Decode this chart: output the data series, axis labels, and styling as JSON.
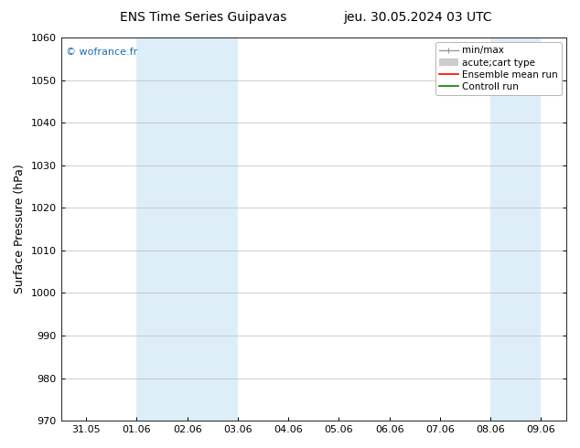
{
  "title_left": "ENS Time Series Guipavas",
  "title_right": "jeu. 30.05.2024 03 UTC",
  "ylabel": "Surface Pressure (hPa)",
  "ylim": [
    970,
    1060
  ],
  "yticks": [
    970,
    980,
    990,
    1000,
    1010,
    1020,
    1030,
    1040,
    1050,
    1060
  ],
  "x_labels": [
    "31.05",
    "01.06",
    "02.06",
    "03.06",
    "04.06",
    "05.06",
    "06.06",
    "07.06",
    "08.06",
    "09.06"
  ],
  "x_positions": [
    0,
    1,
    2,
    3,
    4,
    5,
    6,
    7,
    8,
    9
  ],
  "xlim": [
    -0.5,
    9.5
  ],
  "shaded_regions": [
    {
      "xmin": 1.0,
      "xmax": 3.0,
      "color": "#ddeef8"
    },
    {
      "xmin": 8.0,
      "xmax": 9.0,
      "color": "#ddeef8"
    }
  ],
  "watermark": "© wofrance.fr",
  "watermark_color": "#1a6bb5",
  "background_color": "#ffffff",
  "plot_bg_color": "#ffffff",
  "legend_items": [
    {
      "label": "min/max",
      "color": "#999999",
      "lw": 1.0
    },
    {
      "label": "acute;cart type",
      "color": "#cccccc",
      "lw": 6
    },
    {
      "label": "Ensemble mean run",
      "color": "#ff0000",
      "lw": 1.2
    },
    {
      "label": "Controll run",
      "color": "#008000",
      "lw": 1.2
    }
  ],
  "title_fontsize": 10,
  "ylabel_fontsize": 9,
  "tick_fontsize": 8,
  "legend_fontsize": 7.5,
  "watermark_fontsize": 8
}
